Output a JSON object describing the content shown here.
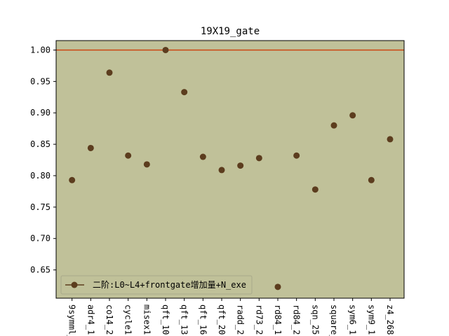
{
  "chart_data": {
    "type": "scatter",
    "title": "19X19_gate",
    "xlabel": "",
    "ylabel": "",
    "ylim": [
      0.605,
      1.015
    ],
    "yticks": [
      0.65,
      0.7,
      0.75,
      0.8,
      0.85,
      0.9,
      0.95,
      1.0
    ],
    "ytick_labels": [
      "0.65",
      "0.70",
      "0.75",
      "0.80",
      "0.85",
      "0.90",
      "0.95",
      "1.00"
    ],
    "categories": [
      "9symml_",
      "adr4_1",
      "co14_2",
      "cycle1",
      "misex1",
      "qft_10",
      "qft_13",
      "qft_16",
      "qft_20",
      "radd_2",
      "rd73_2",
      "rd84_1",
      "rd84_2",
      "sqn_25",
      "square_",
      "sym6_1",
      "sym9_1",
      "z4_268"
    ],
    "series": [
      {
        "name": "二阶:L0~L4+frontgate增加量+N_exe",
        "values": [
          0.793,
          0.844,
          0.964,
          0.832,
          0.818,
          1.0,
          0.933,
          0.83,
          0.809,
          0.816,
          0.828,
          0.623,
          0.832,
          0.778,
          0.88,
          0.896,
          0.793,
          0.858
        ]
      }
    ],
    "reference_line": {
      "y": 1.0
    },
    "grid": false,
    "legend_position": "lower-left",
    "colors": {
      "plot_background": "#c0c199",
      "marker": "#5c3d1e",
      "reference_line": "#cc4410",
      "frame": "#000000"
    }
  }
}
